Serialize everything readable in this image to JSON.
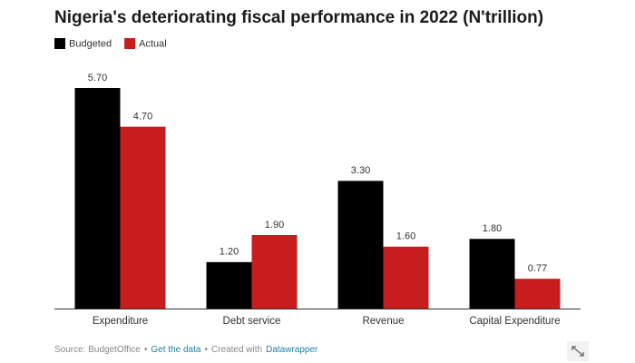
{
  "chart_data": {
    "type": "bar",
    "title": "Nigeria's deteriorating fiscal performance in 2022 (N'trillion)",
    "categories": [
      "Expenditure",
      "Debt service",
      "Revenue",
      "Capital Expenditure"
    ],
    "series": [
      {
        "name": "Budgeted",
        "color": "#000000",
        "values": [
          5.7,
          1.2,
          3.3,
          1.8
        ],
        "value_labels": [
          "5.70",
          "1.20",
          "3.30",
          "1.80"
        ]
      },
      {
        "name": "Actual",
        "color": "#c71e1d",
        "values": [
          4.7,
          1.9,
          1.6,
          0.77
        ],
        "value_labels": [
          "4.70",
          "1.90",
          "1.60",
          "0.77"
        ]
      }
    ],
    "footer": {
      "source": "Source: BudgetOffice",
      "separator": "•",
      "get_data": "Get the data",
      "created_with": "Created with",
      "tool": "Datawrapper"
    }
  }
}
